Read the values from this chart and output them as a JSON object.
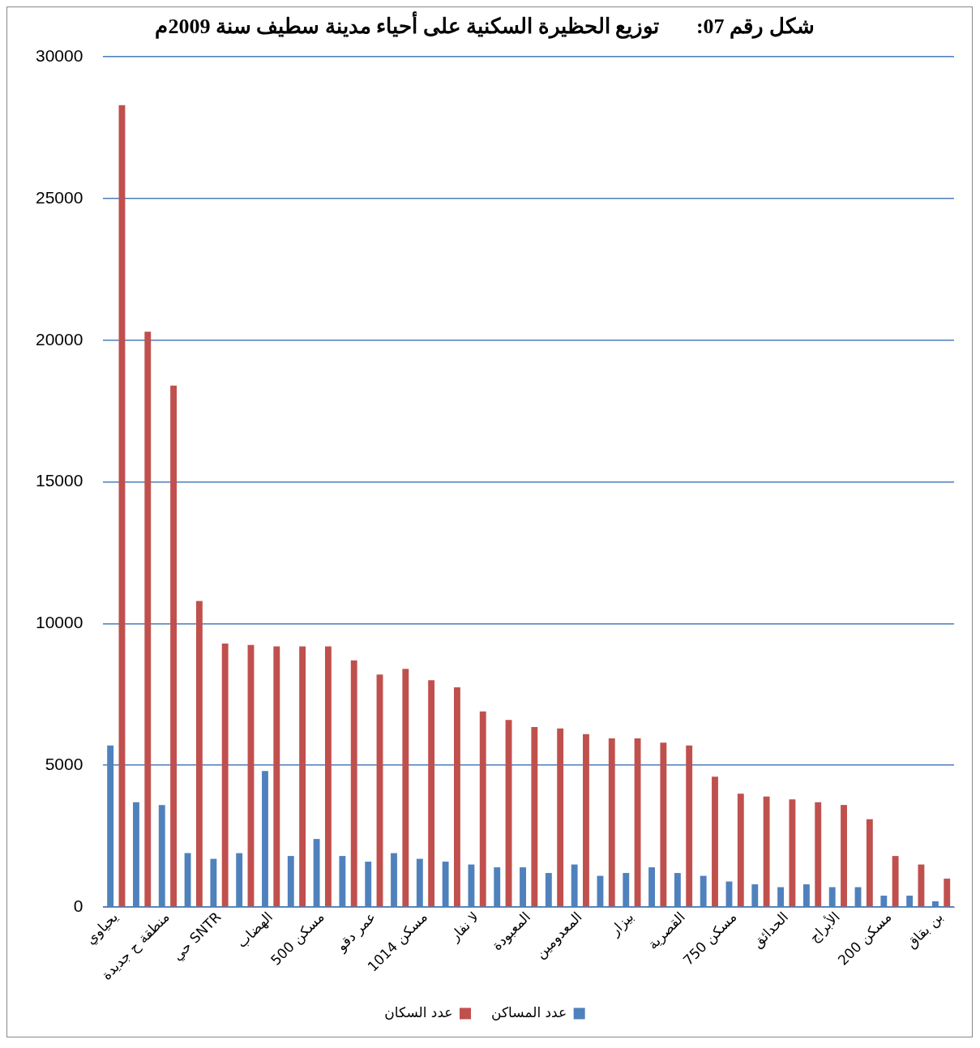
{
  "chart_data": {
    "type": "bar",
    "title": "شكل رقم 07:       توزيع الحظيرة السكنية على أحياء مدينة سطيف سنة 2009م",
    "categories": [
      "يحياوي",
      null,
      "منطقة ح جديدة",
      null,
      "حي SNTR",
      null,
      "الهضاب",
      null,
      "500 مسكن",
      null,
      "عمر دقو",
      null,
      "1014 مسكن",
      null,
      "لا نفار",
      null,
      "المعبودة",
      null,
      "المعدومين",
      null,
      "بيزار",
      null,
      "القصرية",
      null,
      "750 مسكن",
      null,
      "الحدائق",
      null,
      "الأبراج",
      null,
      "200 مسكن",
      null,
      "بن بقاق"
    ],
    "series": [
      {
        "name": "عدد المساكن",
        "color": "#4f81bd",
        "values": [
          5700,
          3700,
          3600,
          1900,
          1700,
          1900,
          4800,
          1800,
          2400,
          1800,
          1600,
          1900,
          1700,
          1600,
          1500,
          1400,
          1400,
          1200,
          1500,
          1100,
          1200,
          1400,
          1200,
          1100,
          900,
          800,
          700,
          800,
          700,
          700,
          400,
          400,
          200
        ]
      },
      {
        "name": "عدد السكان",
        "color": "#c0504d",
        "values": [
          28300,
          20300,
          18400,
          10800,
          9300,
          9250,
          9200,
          9200,
          9200,
          8700,
          8200,
          8400,
          8000,
          7750,
          6900,
          6600,
          6350,
          6300,
          6100,
          5950,
          5950,
          5800,
          5700,
          4600,
          4000,
          3900,
          3800,
          3700,
          3600,
          3100,
          1800,
          1500,
          1000
        ]
      }
    ],
    "ylim": [
      0,
      30000
    ],
    "yticks": [
      0,
      5000,
      10000,
      15000,
      20000,
      25000,
      30000
    ],
    "grid": "y",
    "legend": "bottom"
  }
}
